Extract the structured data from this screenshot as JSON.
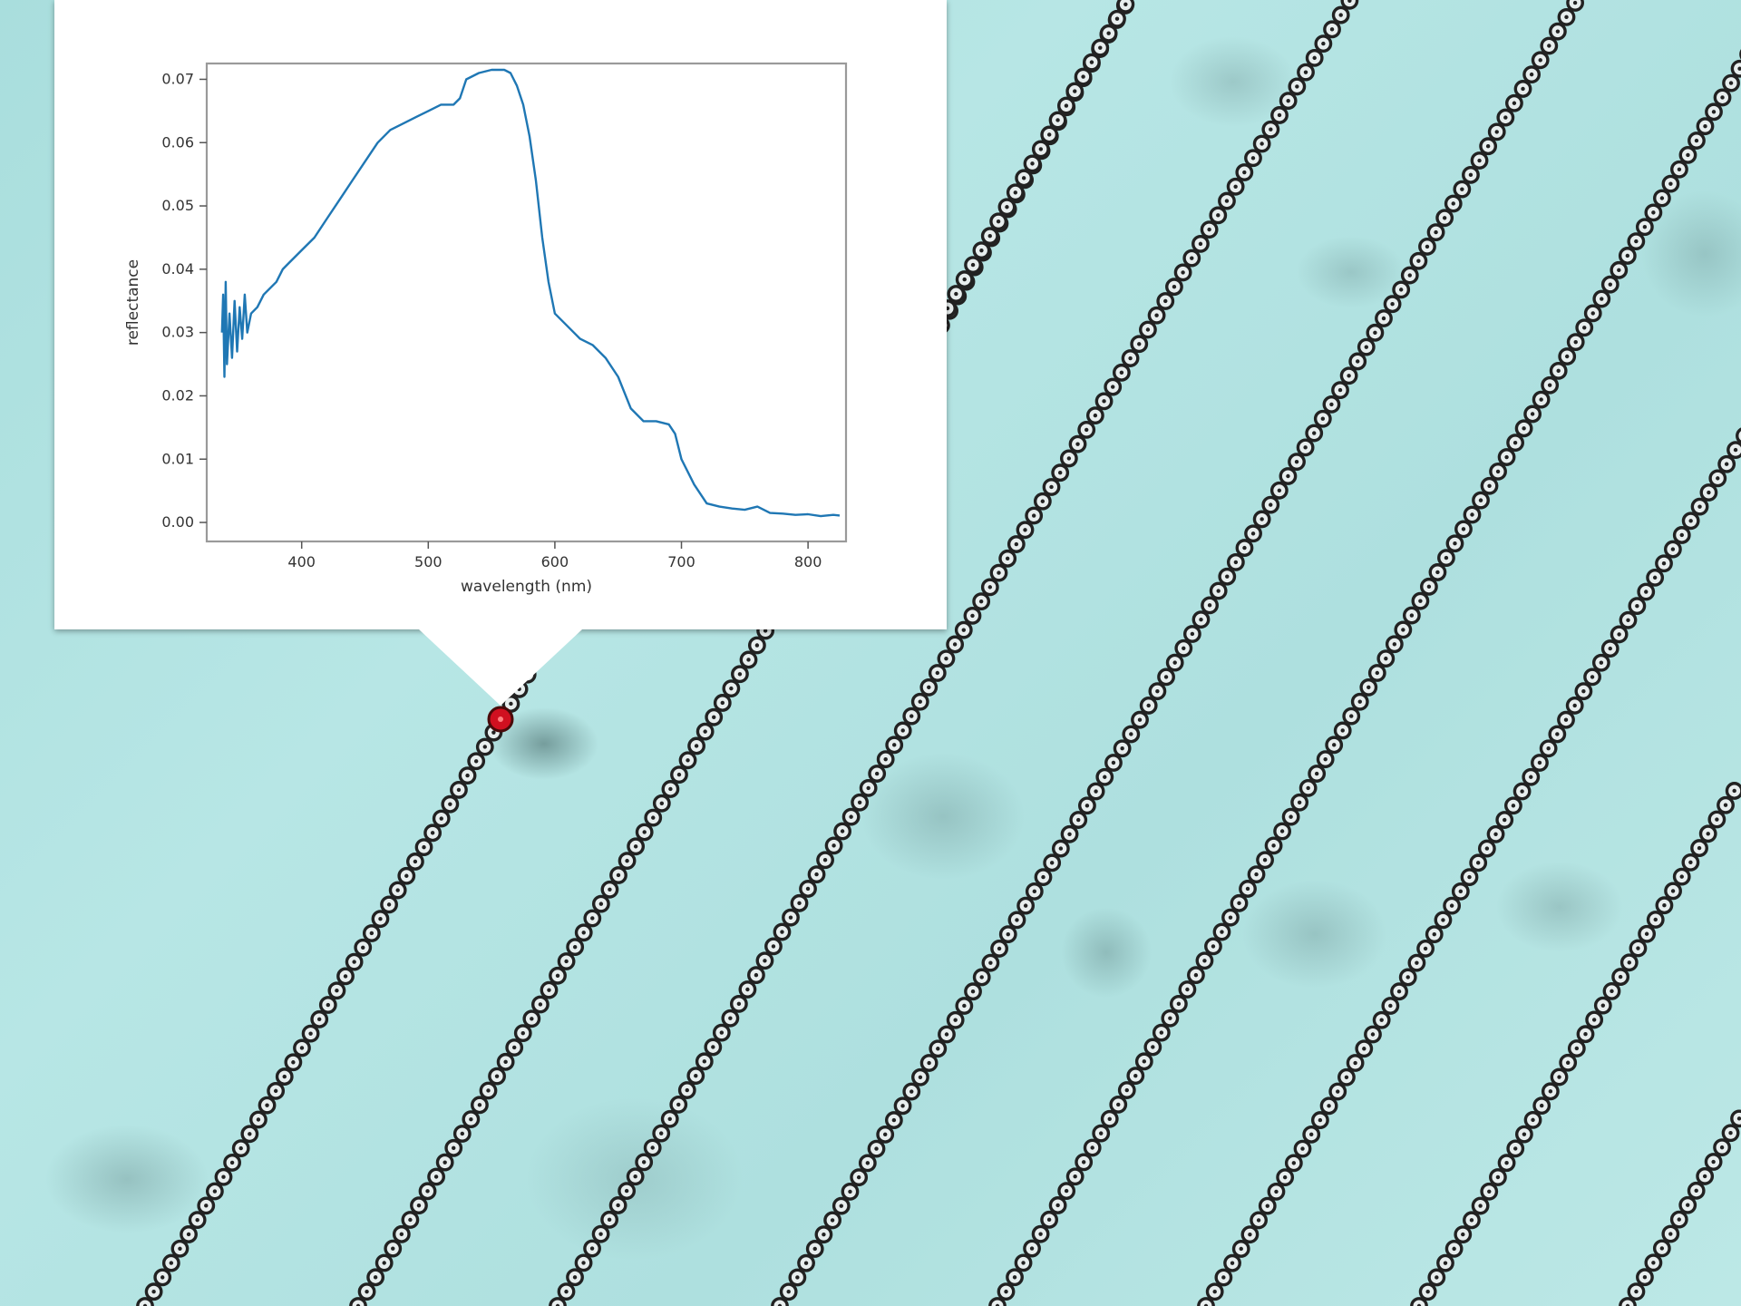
{
  "map": {
    "background": "satellite imagery of shallow turquoise seabed",
    "track_count": 9,
    "track_color": "#222222",
    "selected_point_color": "#d01020"
  },
  "popup": {
    "chart_data": {
      "type": "line",
      "title": "",
      "xlabel": "wavelength (nm)",
      "ylabel": "reflectance",
      "xlim": [
        325,
        830
      ],
      "ylim": [
        -0.003,
        0.0725
      ],
      "x_ticks": [
        "400",
        "500",
        "600",
        "700",
        "800"
      ],
      "y_ticks": [
        "0.00",
        "0.01",
        "0.02",
        "0.03",
        "0.04",
        "0.05",
        "0.06",
        "0.07"
      ],
      "series": [
        {
          "color": "#1f77b4",
          "x": [
            337,
            338,
            339,
            340,
            341,
            343,
            345,
            347,
            349,
            351,
            353,
            355,
            357,
            360,
            365,
            370,
            375,
            380,
            385,
            390,
            395,
            400,
            410,
            420,
            430,
            440,
            450,
            460,
            470,
            480,
            490,
            500,
            510,
            520,
            525,
            530,
            540,
            550,
            560,
            565,
            570,
            575,
            580,
            585,
            590,
            595,
            600,
            610,
            620,
            630,
            640,
            650,
            660,
            670,
            680,
            690,
            695,
            700,
            710,
            720,
            730,
            740,
            750,
            760,
            770,
            780,
            790,
            800,
            810,
            820,
            825
          ],
          "y": [
            0.03,
            0.036,
            0.023,
            0.038,
            0.025,
            0.033,
            0.026,
            0.035,
            0.027,
            0.034,
            0.029,
            0.036,
            0.03,
            0.033,
            0.034,
            0.036,
            0.037,
            0.038,
            0.04,
            0.041,
            0.042,
            0.043,
            0.045,
            0.048,
            0.051,
            0.054,
            0.057,
            0.06,
            0.062,
            0.063,
            0.064,
            0.065,
            0.066,
            0.066,
            0.067,
            0.07,
            0.071,
            0.0715,
            0.0715,
            0.071,
            0.069,
            0.066,
            0.061,
            0.054,
            0.045,
            0.038,
            0.033,
            0.031,
            0.029,
            0.028,
            0.026,
            0.023,
            0.018,
            0.016,
            0.016,
            0.0155,
            0.014,
            0.01,
            0.006,
            0.003,
            0.0025,
            0.0022,
            0.002,
            0.0025,
            0.0015,
            0.0014,
            0.0012,
            0.0013,
            0.001,
            0.0012,
            0.0011
          ]
        }
      ]
    }
  }
}
